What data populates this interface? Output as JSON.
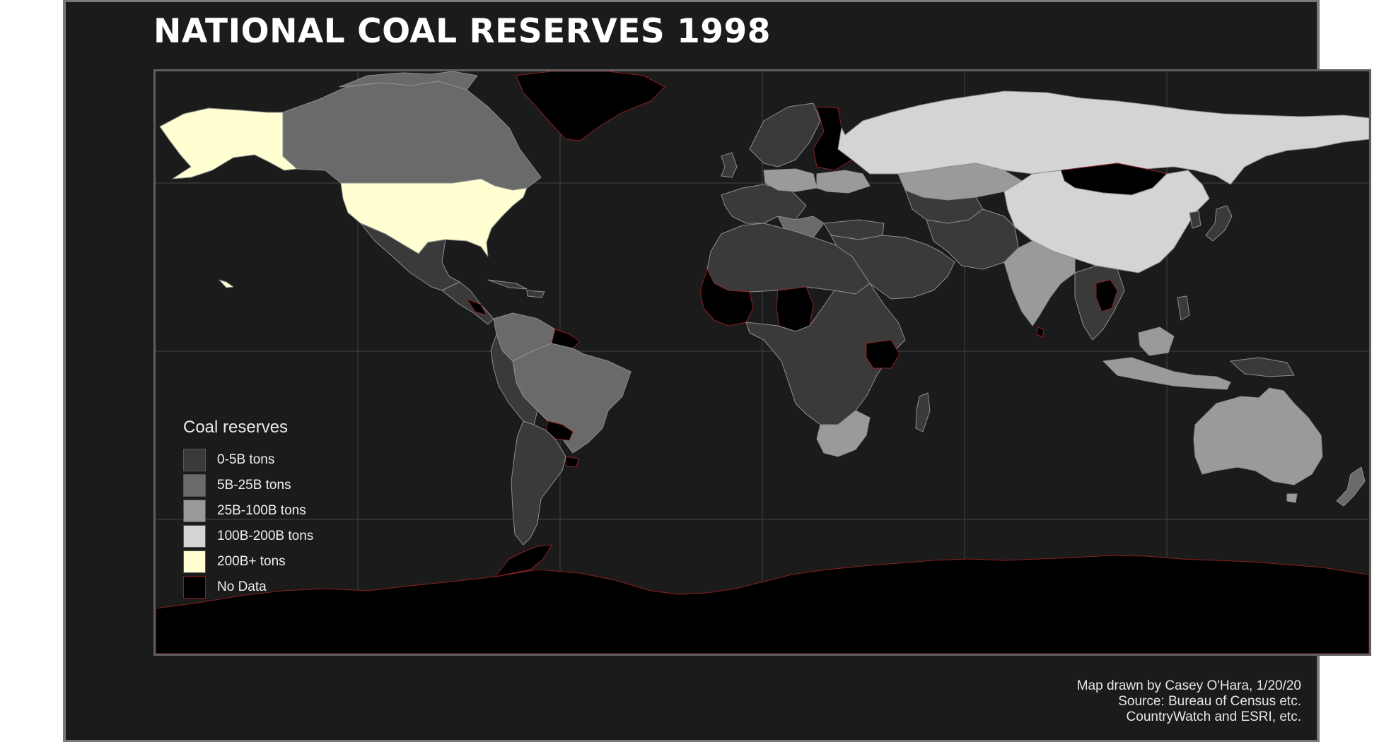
{
  "title": "NATIONAL COAL RESERVES 1998",
  "legend": {
    "title": "Coal reserves",
    "items": [
      {
        "label": "0-5B tons",
        "color": "#3a3a3a"
      },
      {
        "label": "5B-25B tons",
        "color": "#6a6a6a"
      },
      {
        "label": "25B-100B tons",
        "color": "#9a9a9a"
      },
      {
        "label": "100B-200B tons",
        "color": "#d4d4d4"
      },
      {
        "label": "200B+ tons",
        "color": "#ffffd2"
      },
      {
        "label": "No Data",
        "color": "#000000"
      }
    ]
  },
  "credits": {
    "line1": "Map drawn by Casey O'Hara, 1/20/20",
    "line2": "Source: Bureau of Census etc.",
    "line3": "CountryWatch and ESRI, etc."
  },
  "map": {
    "background": "#1b1b1b",
    "gridline_color": "#3c3c3c",
    "border_color_no_data": "#8a2020",
    "country_border_color": "#9a9a9a"
  }
}
